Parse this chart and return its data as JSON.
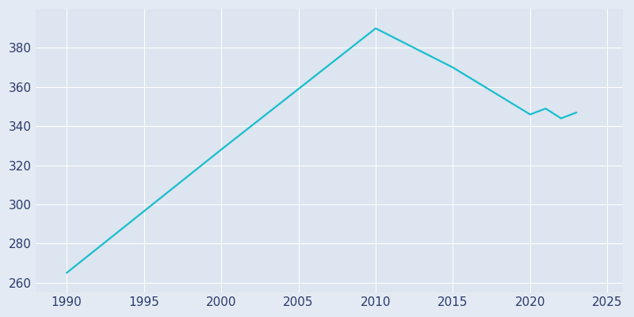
{
  "years": [
    1990,
    2000,
    2010,
    2015,
    2020,
    2021,
    2022,
    2023
  ],
  "population": [
    265,
    328,
    390,
    370,
    346,
    349,
    344,
    347
  ],
  "line_color": "#17BECF",
  "bg_color": "#E3EAF4",
  "plot_bg_color": "#DCE5F0",
  "grid_color": "#FFFFFF",
  "xlim": [
    1988,
    2026
  ],
  "ylim": [
    255,
    400
  ],
  "yticks": [
    260,
    280,
    300,
    320,
    340,
    360,
    380
  ],
  "xticks": [
    1990,
    1995,
    2000,
    2005,
    2010,
    2015,
    2020,
    2025
  ],
  "tick_color": "#2B3A6B",
  "tick_fontsize": 11
}
